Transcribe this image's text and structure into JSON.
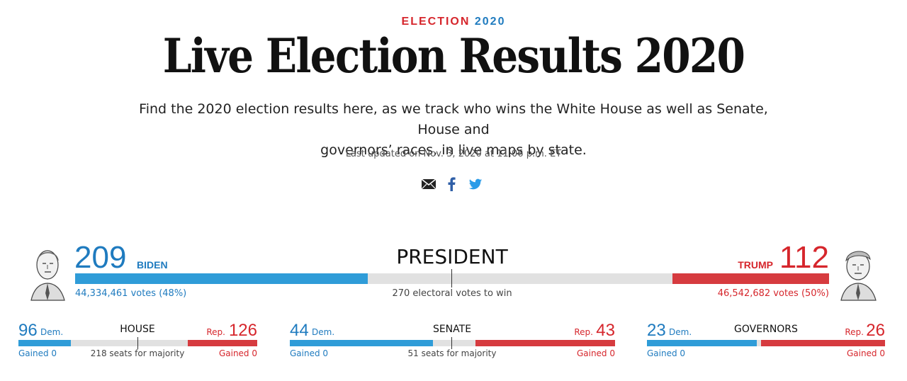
{
  "header": {
    "kicker_prefix": "ELECTION ",
    "kicker_year": "2020",
    "title": "Live Election Results 2020",
    "dek_line1": "Find the 2020 election results here, as we track who wins the White House as well as Senate, House and",
    "dek_line2": "governors’ races, in live maps by state.",
    "updated": "Last updated on Nov. 3, 2020 at 11:06 p.m. ET"
  },
  "share": [
    "email-icon",
    "facebook-icon",
    "twitter-icon"
  ],
  "colors": {
    "dem": "#2f9cd8",
    "rep": "#d63b3f",
    "neutral": "#e1e1e1",
    "dem_text": "#1f7bbf",
    "rep_text": "#d6262c"
  },
  "president": {
    "office": "PRESIDENT",
    "dem": {
      "electoral": "209",
      "name": "BIDEN",
      "votes": "44,334,461 votes (48%)"
    },
    "rep": {
      "electoral": "112",
      "name": "TRUMP",
      "votes": "46,542,682 votes (50%)"
    },
    "majority_note": "270 electoral votes to win",
    "total": 538,
    "dem_value": 209,
    "rep_value": 112
  },
  "races": [
    {
      "office": "HOUSE",
      "dem_seats": "96",
      "dem_label": "Dem.",
      "rep_seats": "126",
      "rep_label": "Rep.",
      "dem_gain": "Gained 0",
      "rep_gain": "Gained 0",
      "majority_note": "218 seats for majority",
      "total": 435,
      "dem_value": 96,
      "rep_value": 126,
      "marker": true
    },
    {
      "office": "SENATE",
      "dem_seats": "44",
      "dem_label": "Dem.",
      "rep_seats": "43",
      "rep_label": "Rep.",
      "dem_gain": "Gained 0",
      "rep_gain": "Gained 0",
      "majority_note": "51 seats for majority",
      "total": 100,
      "dem_value": 44,
      "rep_value": 43,
      "marker": true
    },
    {
      "office": "GOVERNORS",
      "dem_seats": "23",
      "dem_label": "Dem.",
      "rep_seats": "26",
      "rep_label": "Rep.",
      "dem_gain": "Gained 0",
      "rep_gain": "Gained 0",
      "majority_note": "",
      "total": 50,
      "dem_value": 23,
      "rep_value": 26,
      "marker": false
    }
  ]
}
